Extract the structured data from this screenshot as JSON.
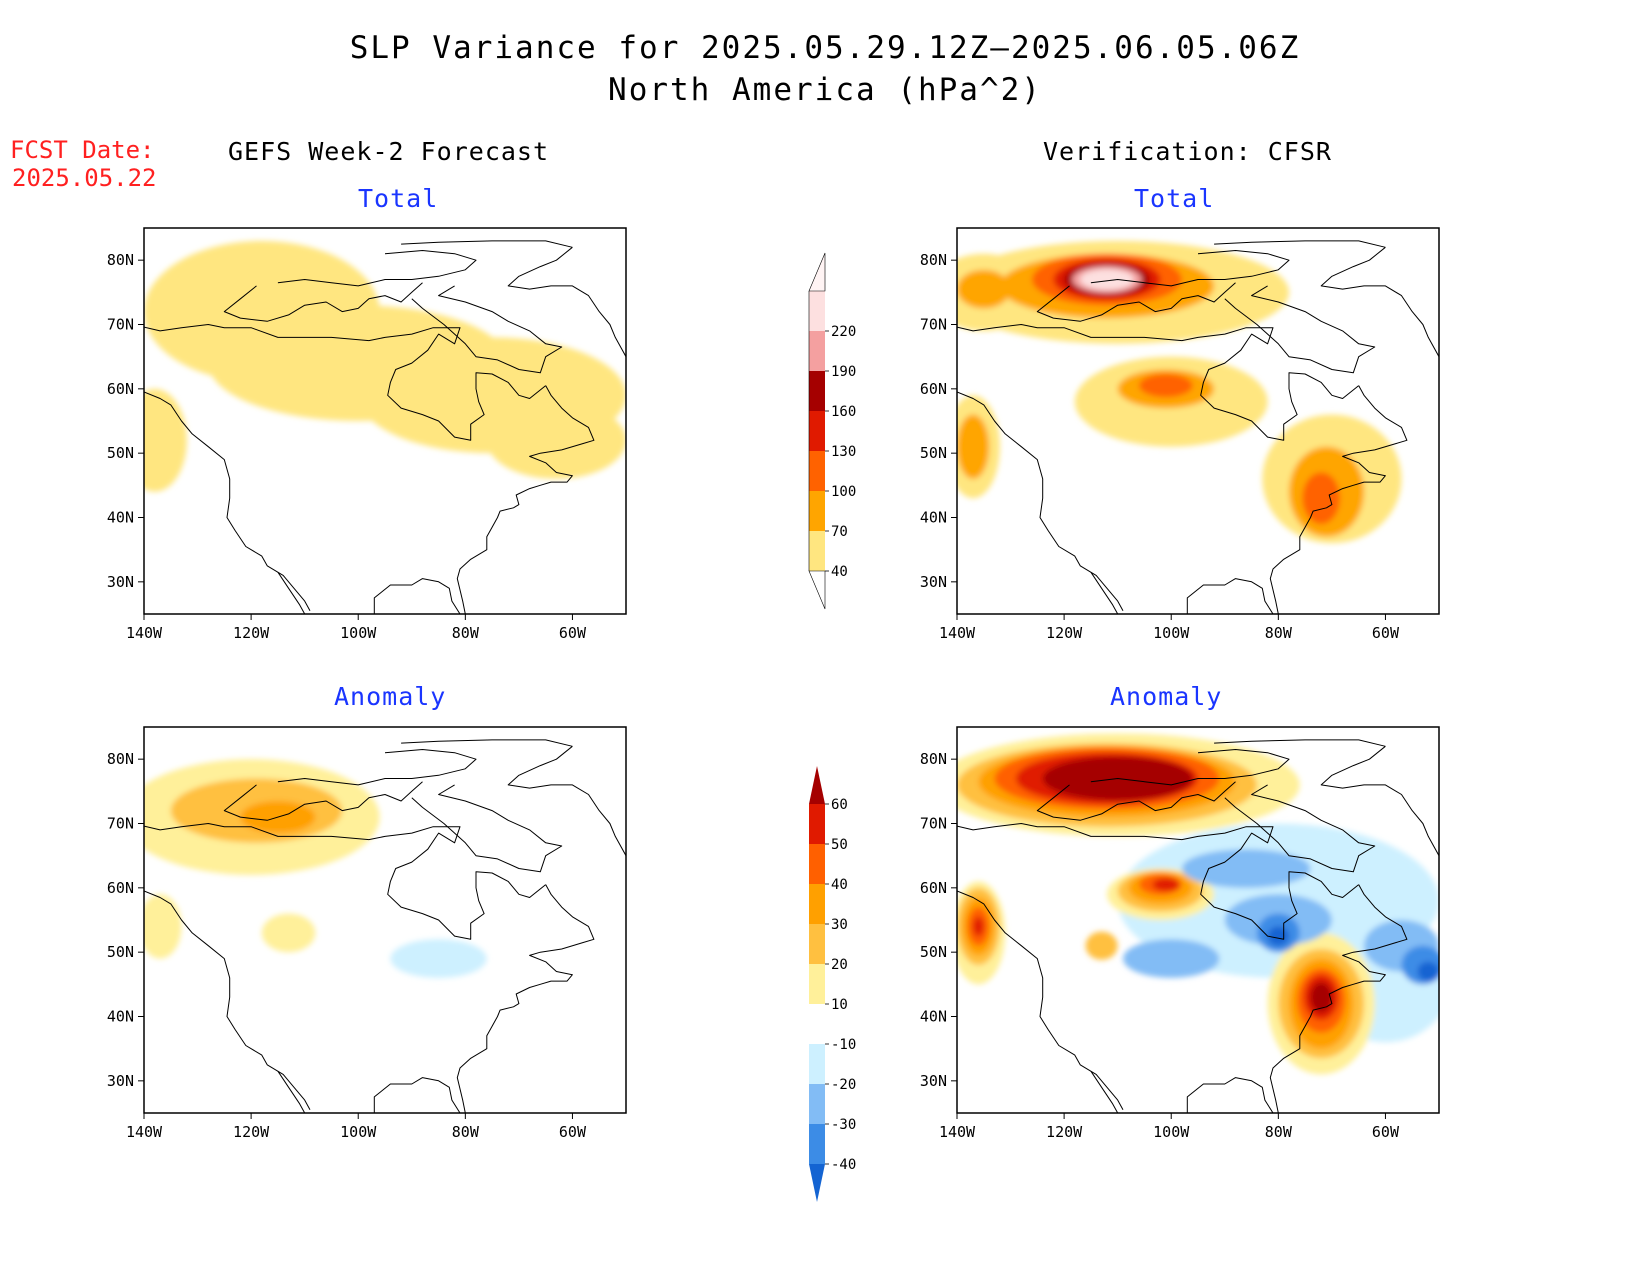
{
  "title": {
    "line1": "SLP Variance for 2025.05.29.12Z–2025.06.05.06Z",
    "line2": "North America (hPa^2)"
  },
  "fcst_date": {
    "label": "FCST Date:",
    "value": "2025.05.22"
  },
  "columns": {
    "left": "GEFS Week-2 Forecast",
    "right": "Verification: CFSR"
  },
  "panel_titles": {
    "total": "Total",
    "anomaly": "Anomaly"
  },
  "axes": {
    "lat_ticks": [
      "80N",
      "70N",
      "60N",
      "50N",
      "40N",
      "30N"
    ],
    "lat_values": [
      80,
      70,
      60,
      50,
      40,
      30
    ],
    "lon_ticks": [
      "140W",
      "120W",
      "100W",
      "80W",
      "60W"
    ],
    "lon_values": [
      -140,
      -120,
      -100,
      -80,
      -60
    ],
    "lon_range": [
      -140,
      -50
    ],
    "lat_range": [
      25,
      85
    ]
  },
  "colorbars": {
    "total": {
      "labels": [
        "40",
        "70",
        "100",
        "130",
        "160",
        "190",
        "220"
      ],
      "colors": [
        "#ffe680",
        "#ffa500",
        "#ff6200",
        "#e01a00",
        "#a50000",
        "#f4a0a0",
        "#fde0e0"
      ]
    },
    "anomaly": {
      "labels": [
        "-40",
        "-30",
        "-20",
        "-10",
        "10",
        "20",
        "30",
        "40",
        "50",
        "60"
      ],
      "colors": [
        "#1464d2",
        "#3c8ce6",
        "#82bcf5",
        "#cdf0ff",
        "#ffffff",
        "#fff09a",
        "#ffc040",
        "#ffa000",
        "#ff6000",
        "#e01a00",
        "#a50000"
      ]
    }
  },
  "fields": {
    "gefs_total": [
      {
        "lon": -118,
        "lat": 72,
        "rx": 22,
        "ry": 11,
        "color": "#ffe680"
      },
      {
        "lon": -100,
        "lat": 64,
        "rx": 28,
        "ry": 9,
        "color": "#ffe680"
      },
      {
        "lon": -75,
        "lat": 59,
        "rx": 25,
        "ry": 9,
        "color": "#ffe680"
      },
      {
        "lon": -63,
        "lat": 52,
        "rx": 13,
        "ry": 6,
        "color": "#ffe680"
      },
      {
        "lon": -138,
        "lat": 52,
        "rx": 6,
        "ry": 8,
        "color": "#ffe680"
      }
    ],
    "cfsr_total": [
      {
        "lon": -110,
        "lat": 75,
        "rx": 32,
        "ry": 8,
        "color": "#ffe680"
      },
      {
        "lon": -135,
        "lat": 75,
        "rx": 10,
        "ry": 6,
        "color": "#ffe680"
      },
      {
        "lon": -100,
        "lat": 58,
        "rx": 18,
        "ry": 7,
        "color": "#ffe680"
      },
      {
        "lon": -70,
        "lat": 46,
        "rx": 13,
        "ry": 10,
        "color": "#ffe680"
      },
      {
        "lon": -137,
        "lat": 51,
        "rx": 5,
        "ry": 8,
        "color": "#ffe680"
      },
      {
        "lon": -112,
        "lat": 76,
        "rx": 20,
        "ry": 5,
        "color": "#ffa500"
      },
      {
        "lon": -135,
        "lat": 75.5,
        "rx": 5,
        "ry": 3,
        "color": "#ffa500"
      },
      {
        "lon": -101,
        "lat": 60,
        "rx": 9,
        "ry": 3,
        "color": "#ffa500"
      },
      {
        "lon": -71,
        "lat": 44,
        "rx": 7,
        "ry": 7,
        "color": "#ffa500"
      },
      {
        "lon": -137,
        "lat": 51,
        "rx": 3,
        "ry": 5,
        "color": "#ffa500"
      },
      {
        "lon": -112,
        "lat": 77,
        "rx": 14,
        "ry": 4,
        "color": "#ff6200"
      },
      {
        "lon": -101,
        "lat": 60.5,
        "rx": 5,
        "ry": 1.8,
        "color": "#ff6200"
      },
      {
        "lon": -72,
        "lat": 43,
        "rx": 3.5,
        "ry": 4,
        "color": "#ff6200"
      },
      {
        "lon": -112,
        "lat": 77,
        "rx": 10,
        "ry": 3.2,
        "color": "#e01a00"
      },
      {
        "lon": -112,
        "lat": 77,
        "rx": 8,
        "ry": 2.6,
        "color": "#a50000"
      },
      {
        "lon": -112,
        "lat": 77,
        "rx": 6.5,
        "ry": 2.1,
        "color": "#f4a0a0"
      },
      {
        "lon": -112,
        "lat": 77,
        "rx": 5,
        "ry": 1.6,
        "color": "#fde0e0"
      }
    ],
    "gefs_anomaly": [
      {
        "lon": -120,
        "lat": 71,
        "rx": 24,
        "ry": 9,
        "color": "#fff09a"
      },
      {
        "lon": -137,
        "lat": 54,
        "rx": 4,
        "ry": 5,
        "color": "#fff09a"
      },
      {
        "lon": -113,
        "lat": 53,
        "rx": 5,
        "ry": 3,
        "color": "#fff09a"
      },
      {
        "lon": -85,
        "lat": 49,
        "rx": 9,
        "ry": 3,
        "color": "#cdf0ff"
      },
      {
        "lon": -119,
        "lat": 72,
        "rx": 16,
        "ry": 5,
        "color": "#ffc040"
      },
      {
        "lon": -115,
        "lat": 71,
        "rx": 7,
        "ry": 2.5,
        "color": "#ffa000"
      }
    ],
    "cfsr_anomaly": [
      {
        "lon": -80,
        "lat": 58,
        "rx": 30,
        "ry": 12,
        "color": "#cdf0ff"
      },
      {
        "lon": -60,
        "lat": 45,
        "rx": 12,
        "ry": 9,
        "color": "#cdf0ff"
      },
      {
        "lon": -110,
        "lat": 76,
        "rx": 34,
        "ry": 8,
        "color": "#fff09a"
      },
      {
        "lon": -102,
        "lat": 59,
        "rx": 10,
        "ry": 4,
        "color": "#fff09a"
      },
      {
        "lon": -72,
        "lat": 42,
        "rx": 10,
        "ry": 11,
        "color": "#fff09a"
      },
      {
        "lon": -136,
        "lat": 53,
        "rx": 5,
        "ry": 8,
        "color": "#fff09a"
      },
      {
        "lon": -112,
        "lat": 76,
        "rx": 28,
        "ry": 6.5,
        "color": "#ffc040"
      },
      {
        "lon": -102,
        "lat": 59.5,
        "rx": 8,
        "ry": 3.2,
        "color": "#ffc040"
      },
      {
        "lon": -72,
        "lat": 42,
        "rx": 8,
        "ry": 8.5,
        "color": "#ffc040"
      },
      {
        "lon": -136,
        "lat": 54,
        "rx": 4,
        "ry": 6,
        "color": "#ffc040"
      },
      {
        "lon": -113,
        "lat": 51,
        "rx": 3,
        "ry": 2.2,
        "color": "#ffc040"
      },
      {
        "lon": -112,
        "lat": 76.5,
        "rx": 24,
        "ry": 5.5,
        "color": "#ffa000"
      },
      {
        "lon": -102,
        "lat": 60,
        "rx": 6,
        "ry": 2.5,
        "color": "#ffa000"
      },
      {
        "lon": -72,
        "lat": 42,
        "rx": 6,
        "ry": 7,
        "color": "#ffa000"
      },
      {
        "lon": -136,
        "lat": 54,
        "rx": 3,
        "ry": 4.5,
        "color": "#ffa000"
      },
      {
        "lon": -112,
        "lat": 77,
        "rx": 21,
        "ry": 4.8,
        "color": "#ff6000"
      },
      {
        "lon": -72,
        "lat": 42.5,
        "rx": 4.5,
        "ry": 5,
        "color": "#ff6000"
      },
      {
        "lon": -102,
        "lat": 60.5,
        "rx": 4,
        "ry": 1.6,
        "color": "#ff6000"
      },
      {
        "lon": -136,
        "lat": 54,
        "rx": 2,
        "ry": 3,
        "color": "#ff6000"
      },
      {
        "lon": -112,
        "lat": 77,
        "rx": 17,
        "ry": 4,
        "color": "#e01a00"
      },
      {
        "lon": -72,
        "lat": 43,
        "rx": 3.2,
        "ry": 3.5,
        "color": "#e01a00"
      },
      {
        "lon": -101,
        "lat": 60.5,
        "rx": 2.5,
        "ry": 1,
        "color": "#e01a00"
      },
      {
        "lon": -136,
        "lat": 54,
        "rx": 1,
        "ry": 1.5,
        "color": "#e01a00"
      },
      {
        "lon": -110,
        "lat": 77,
        "rx": 14,
        "ry": 3.4,
        "color": "#a50000"
      },
      {
        "lon": -72,
        "lat": 43,
        "rx": 2,
        "ry": 2.3,
        "color": "#a50000"
      },
      {
        "lon": -86,
        "lat": 63,
        "rx": 12,
        "ry": 3,
        "color": "#82bcf5"
      },
      {
        "lon": -80,
        "lat": 55,
        "rx": 10,
        "ry": 4,
        "color": "#82bcf5"
      },
      {
        "lon": -100,
        "lat": 49,
        "rx": 9,
        "ry": 3,
        "color": "#82bcf5"
      },
      {
        "lon": -57,
        "lat": 51,
        "rx": 7,
        "ry": 4,
        "color": "#82bcf5"
      },
      {
        "lon": -80,
        "lat": 53,
        "rx": 4,
        "ry": 3,
        "color": "#3c8ce6"
      },
      {
        "lon": -53,
        "lat": 48,
        "rx": 4,
        "ry": 3,
        "color": "#3c8ce6"
      },
      {
        "lon": -80,
        "lat": 52.5,
        "rx": 2,
        "ry": 1.5,
        "color": "#1464d2"
      },
      {
        "lon": -52,
        "lat": 47,
        "rx": 2,
        "ry": 1.5,
        "color": "#1464d2"
      }
    ]
  },
  "coastline": [
    [
      [
        -140,
        59.5
      ],
      [
        -137,
        58.5
      ],
      [
        -135,
        57.5
      ],
      [
        -133,
        55
      ],
      [
        -131,
        53
      ],
      [
        -128,
        51
      ],
      [
        -125,
        49
      ],
      [
        -124,
        46
      ],
      [
        -124,
        43
      ],
      [
        -124.5,
        40
      ],
      [
        -123,
        38
      ],
      [
        -121,
        35.5
      ],
      [
        -118,
        34
      ],
      [
        -117,
        32.5
      ],
      [
        -114,
        31
      ],
      [
        -112,
        29
      ],
      [
        -110,
        27
      ],
      [
        -109,
        25.5
      ]
    ],
    [
      [
        -115,
        31.5
      ],
      [
        -113,
        29
      ],
      [
        -111,
        26.5
      ],
      [
        -110,
        25
      ]
    ],
    [
      [
        -97,
        25
      ],
      [
        -97,
        27.5
      ],
      [
        -94,
        29.5
      ],
      [
        -90,
        29.5
      ],
      [
        -88,
        30.5
      ],
      [
        -85,
        30
      ],
      [
        -83,
        29
      ],
      [
        -82.5,
        27
      ],
      [
        -81,
        25
      ]
    ],
    [
      [
        -80,
        25
      ],
      [
        -80.5,
        27
      ],
      [
        -81.5,
        30.5
      ],
      [
        -81,
        32
      ],
      [
        -79,
        33.5
      ],
      [
        -76,
        35
      ],
      [
        -76,
        37
      ],
      [
        -75,
        38.5
      ],
      [
        -74,
        40
      ],
      [
        -73.5,
        41
      ],
      [
        -71,
        41.5
      ],
      [
        -70,
        42
      ],
      [
        -70.5,
        43.5
      ],
      [
        -68,
        44.5
      ],
      [
        -66,
        45
      ],
      [
        -64,
        45.5
      ],
      [
        -61,
        45.5
      ],
      [
        -60,
        46.5
      ],
      [
        -63,
        47
      ],
      [
        -65,
        48.5
      ],
      [
        -68,
        49.5
      ],
      [
        -66,
        50
      ],
      [
        -62,
        50.5
      ],
      [
        -58,
        51.5
      ],
      [
        -56,
        52
      ],
      [
        -57,
        54
      ],
      [
        -60,
        55.5
      ],
      [
        -62,
        57
      ],
      [
        -64,
        59
      ],
      [
        -65,
        60.5
      ]
    ],
    [
      [
        -65,
        60.5
      ],
      [
        -68,
        58.5
      ],
      [
        -70,
        59
      ],
      [
        -72,
        61
      ],
      [
        -75,
        62.3
      ],
      [
        -78,
        62.5
      ],
      [
        -78,
        60
      ],
      [
        -77.5,
        58
      ],
      [
        -76.5,
        56
      ],
      [
        -79,
        54.5
      ],
      [
        -79,
        52
      ],
      [
        -82,
        52.5
      ],
      [
        -85,
        55
      ],
      [
        -88,
        56
      ],
      [
        -92,
        57
      ],
      [
        -94.5,
        59
      ],
      [
        -94,
        61
      ],
      [
        -93,
        63
      ],
      [
        -90,
        64
      ],
      [
        -87,
        66
      ],
      [
        -85,
        68.5
      ],
      [
        -82,
        67
      ],
      [
        -81,
        69.5
      ],
      [
        -86,
        69.5
      ],
      [
        -90,
        68.5
      ],
      [
        -95,
        68
      ],
      [
        -98,
        67.5
      ],
      [
        -105,
        68
      ],
      [
        -110,
        68
      ],
      [
        -115,
        68
      ],
      [
        -120,
        69.5
      ],
      [
        -125,
        69.5
      ],
      [
        -128,
        70
      ],
      [
        -133,
        69.5
      ],
      [
        -137,
        69
      ],
      [
        -140,
        69.6
      ]
    ],
    [
      [
        -60,
        82
      ],
      [
        -63,
        80
      ],
      [
        -66,
        79
      ],
      [
        -70,
        77.5
      ],
      [
        -72,
        76
      ],
      [
        -68,
        75.5
      ],
      [
        -64,
        76
      ],
      [
        -60,
        76
      ],
      [
        -57,
        74.5
      ],
      [
        -55,
        72
      ],
      [
        -53,
        70
      ],
      [
        -52,
        68
      ],
      [
        -50,
        65
      ]
    ],
    [
      [
        -92,
        82.5
      ],
      [
        -85,
        82.8
      ],
      [
        -75,
        83
      ],
      [
        -65,
        83
      ],
      [
        -60,
        82
      ]
    ],
    [
      [
        -82,
        76
      ],
      [
        -85,
        74.5
      ],
      [
        -80,
        73.5
      ],
      [
        -75,
        72
      ],
      [
        -72,
        70.5
      ],
      [
        -68,
        69
      ],
      [
        -65,
        67
      ],
      [
        -62,
        66.5
      ],
      [
        -65,
        65
      ],
      [
        -66,
        62.5
      ],
      [
        -70,
        63
      ],
      [
        -74,
        64.5
      ],
      [
        -78,
        65
      ],
      [
        -80,
        67
      ],
      [
        -84,
        70
      ],
      [
        -88,
        72.5
      ],
      [
        -90,
        74
      ]
    ],
    [
      [
        -119,
        76
      ],
      [
        -122,
        74
      ],
      [
        -125,
        72
      ],
      [
        -122,
        71
      ],
      [
        -117,
        70.5
      ],
      [
        -113,
        71.5
      ],
      [
        -110,
        73
      ],
      [
        -106,
        73.5
      ],
      [
        -103,
        72
      ],
      [
        -100,
        72.5
      ],
      [
        -98,
        74
      ],
      [
        -95,
        74.5
      ],
      [
        -92,
        73.5
      ],
      [
        -90,
        75
      ],
      [
        -88,
        76.5
      ]
    ],
    [
      [
        -115,
        76.5
      ],
      [
        -110,
        77
      ],
      [
        -105,
        76.5
      ],
      [
        -100,
        76
      ],
      [
        -95,
        77
      ],
      [
        -90,
        77
      ],
      [
        -85,
        77.5
      ],
      [
        -80,
        78.5
      ],
      [
        -78,
        80
      ],
      [
        -82,
        81
      ],
      [
        -88,
        81.5
      ],
      [
        -95,
        81
      ]
    ]
  ]
}
